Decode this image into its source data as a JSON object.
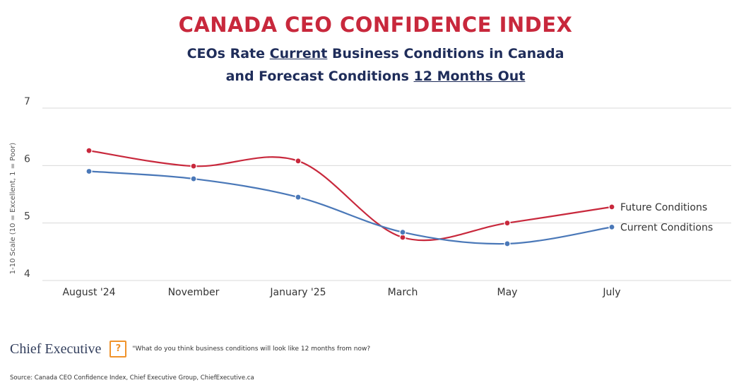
{
  "chart_data": {
    "type": "line",
    "title": "CANADA CEO CONFIDENCE INDEX",
    "subtitle": [
      [
        {
          "text": "CEOs Rate"
        },
        {
          "text": "Current",
          "underline": true
        },
        {
          "text": "Business Conditions in Canada"
        }
      ],
      [
        {
          "text": "and Forecast Conditions"
        },
        {
          "text": "12 Months Out",
          "underline": true
        }
      ]
    ],
    "y_label": "1-10 Scale (10 = Excellent, 1 = Poor)",
    "categories": [
      "August '24",
      "November",
      "January '25",
      "March",
      "May",
      "July"
    ],
    "series": [
      {
        "name": "Future Conditions",
        "color": "#c8283c",
        "values": [
          6.26,
          5.99,
          6.08,
          4.75,
          5.0,
          5.28
        ]
      },
      {
        "name": "Current Conditions",
        "color": "#4a78b8",
        "values": [
          5.9,
          5.77,
          5.45,
          4.84,
          4.64,
          4.93
        ]
      }
    ],
    "ylim": [
      4,
      7
    ],
    "yticks": [
      4,
      5,
      6,
      7
    ],
    "grid": true,
    "logo": "Chief Executive",
    "icon": "?",
    "question": "\"What do you think business conditions will look like 12 months from now?",
    "source": "Source: Canada CEO Confidence Index, Chief Executive Group, ChiefExecutive.ca"
  }
}
